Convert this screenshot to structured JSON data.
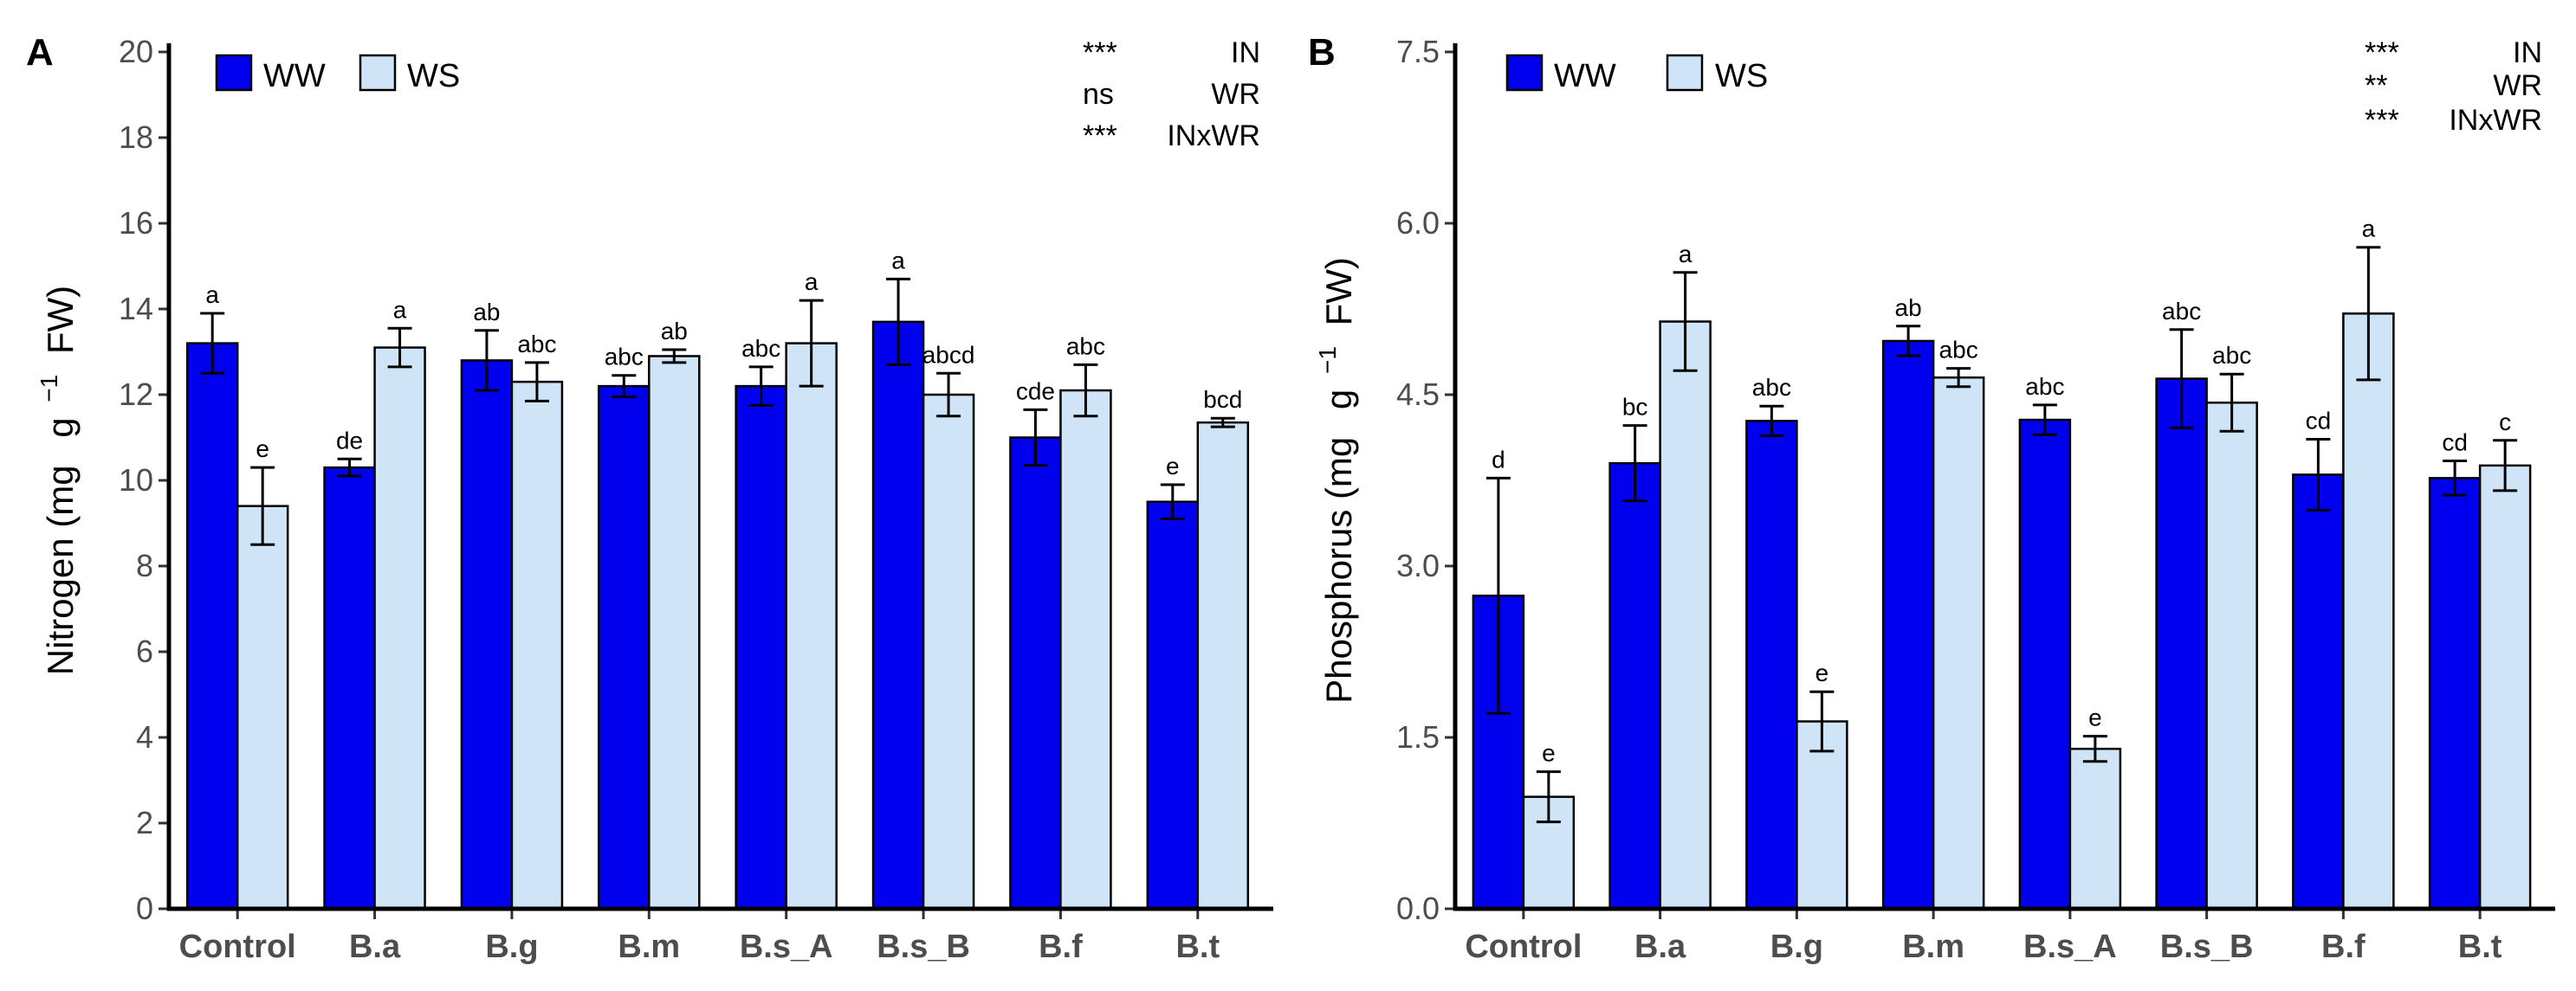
{
  "chart_data": [
    {
      "type": "bar",
      "panel": "A",
      "ylabel": "Nitrogen (mg",
      "ylabel_unit": "g",
      "ylabel_sup": "−1",
      "ylabel_end": "FW)",
      "ylim": [
        0,
        20
      ],
      "yticks": [
        "0",
        "2",
        "4",
        "6",
        "8",
        "10",
        "12",
        "14",
        "16",
        "18",
        "20"
      ],
      "ytick_values": [
        0,
        2,
        4,
        6,
        8,
        10,
        12,
        14,
        16,
        18,
        20
      ],
      "categories": [
        "Control",
        "B.a",
        "B.g",
        "B.m",
        "B.s_A",
        "B.s_B",
        "B.f",
        "B.t"
      ],
      "series": [
        {
          "name": "WW",
          "color": "#0000ee",
          "values": [
            13.2,
            10.3,
            12.8,
            12.2,
            12.2,
            13.7,
            11.0,
            9.5
          ],
          "errors": [
            0.7,
            0.2,
            0.7,
            0.25,
            0.45,
            1.0,
            0.65,
            0.4
          ],
          "letters": [
            "a",
            "de",
            "ab",
            "abc",
            "abc",
            "a",
            "cde",
            "e"
          ]
        },
        {
          "name": "WS",
          "color": "#cfe4f7",
          "values": [
            9.4,
            13.1,
            12.3,
            12.9,
            13.2,
            12.0,
            12.1,
            11.35
          ],
          "errors": [
            0.9,
            0.45,
            0.45,
            0.15,
            1.0,
            0.5,
            0.6,
            0.1
          ],
          "letters": [
            "e",
            "a",
            "abc",
            "ab",
            "a",
            "abcd",
            "abc",
            "bcd"
          ]
        }
      ],
      "significance": [
        {
          "stars": "***",
          "term": "IN"
        },
        {
          "stars": "ns",
          "term": "WR"
        },
        {
          "stars": "***",
          "term": "INxWR"
        }
      ]
    },
    {
      "type": "bar",
      "panel": "B",
      "ylabel": "Phosphorus (mg",
      "ylabel_unit": "g",
      "ylabel_sup": "−1",
      "ylabel_end": "FW)",
      "ylim": [
        0,
        7.5
      ],
      "yticks": [
        "0.0",
        "1.5",
        "3.0",
        "4.5",
        "6.0",
        "7.5"
      ],
      "ytick_values": [
        0,
        1.5,
        3.0,
        4.5,
        6.0,
        7.5
      ],
      "categories": [
        "Control",
        "B.a",
        "B.g",
        "B.m",
        "B.s_A",
        "B.s_B",
        "B.f",
        "B.t"
      ],
      "series": [
        {
          "name": "WW",
          "color": "#0000ee",
          "values": [
            2.74,
            3.9,
            4.27,
            4.97,
            4.28,
            4.64,
            3.8,
            3.77
          ],
          "errors": [
            1.03,
            0.33,
            0.13,
            0.13,
            0.13,
            0.43,
            0.31,
            0.15
          ],
          "letters": [
            "d",
            "bc",
            "abc",
            "ab",
            "abc",
            "abc",
            "cd",
            "cd"
          ]
        },
        {
          "name": "WS",
          "color": "#cfe4f7",
          "values": [
            0.98,
            5.14,
            1.64,
            4.65,
            1.4,
            4.43,
            5.21,
            3.88
          ],
          "errors": [
            0.22,
            0.43,
            0.26,
            0.08,
            0.11,
            0.25,
            0.58,
            0.22
          ],
          "letters": [
            "e",
            "a",
            "e",
            "abc",
            "e",
            "abc",
            "a",
            "c"
          ]
        }
      ],
      "significance": [
        {
          "stars": "***",
          "term": "IN"
        },
        {
          "stars": "**",
          "term": "WR"
        },
        {
          "stars": "***",
          "term": "INxWR"
        }
      ]
    }
  ]
}
